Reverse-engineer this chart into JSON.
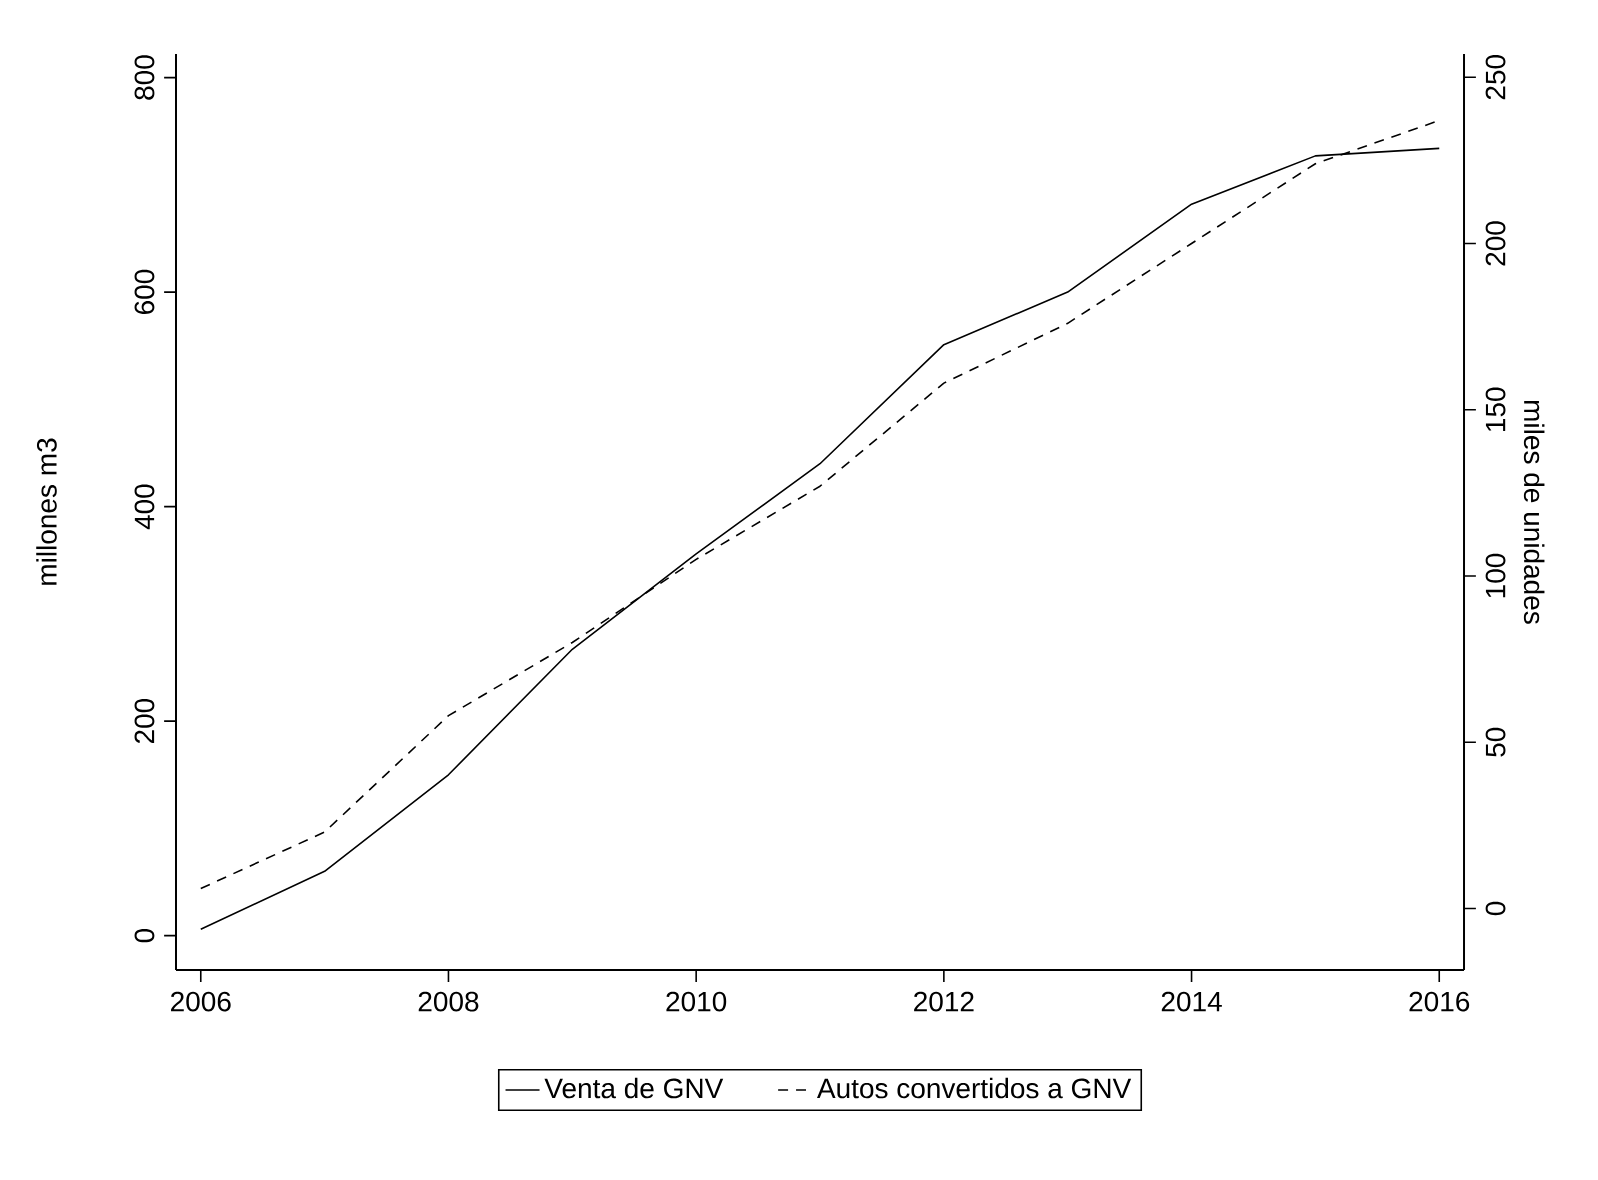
{
  "chart_data": {
    "type": "line",
    "x": [
      2006,
      2007,
      2008,
      2009,
      2010,
      2011,
      2012,
      2013,
      2014,
      2015,
      2016
    ],
    "series": [
      {
        "name": "Venta de GNV",
        "color": "#000000",
        "line_style": "solid",
        "values": [
          6,
          60,
          150,
          267,
          356,
          440,
          551,
          600,
          682,
          727,
          734
        ]
      },
      {
        "name": "Autos convertidos a GNV",
        "color": "#000000",
        "line_style": "dashed",
        "axis": "y2",
        "values": [
          6,
          23,
          58,
          80,
          105,
          127,
          158,
          176,
          200,
          224,
          237
        ]
      }
    ],
    "ylabel": "millones m3",
    "y2label": "miles de unidades",
    "xlim": [
      2005.8,
      2016.2
    ],
    "xticks": [
      2006,
      2008,
      2010,
      2012,
      2014,
      2016
    ],
    "ylim": [
      -32,
      822
    ],
    "yticks": [
      0,
      200,
      400,
      600,
      800
    ],
    "y2lim": [
      -18.5,
      257
    ],
    "y2ticks": [
      0,
      50,
      100,
      150,
      200,
      250
    ],
    "grid": false,
    "legend": "bottom",
    "marker": "none"
  }
}
